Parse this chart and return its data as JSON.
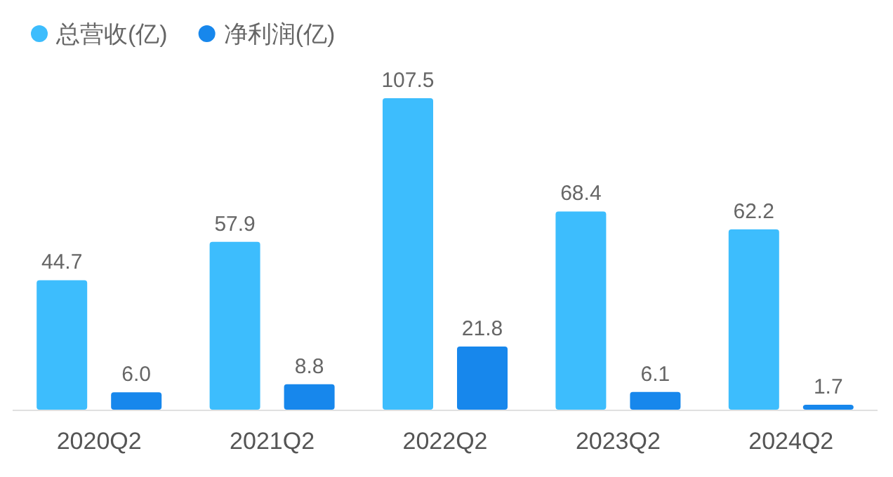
{
  "chart_data": {
    "type": "bar",
    "categories": [
      "2020Q2",
      "2021Q2",
      "2022Q2",
      "2023Q2",
      "2024Q2"
    ],
    "series": [
      {
        "name": "总营收(亿)",
        "color": "#3dbdfd",
        "values": [
          44.7,
          57.9,
          107.5,
          68.4,
          62.2
        ],
        "value_labels": [
          "44.7",
          "57.9",
          "107.5",
          "68.4",
          "62.2"
        ]
      },
      {
        "name": "净利润(亿)",
        "color": "#1787ec",
        "values": [
          6.0,
          8.8,
          21.8,
          6.1,
          1.7
        ],
        "value_labels": [
          "6.0",
          "8.8",
          "21.8",
          "6.1",
          "1.7"
        ]
      }
    ],
    "legend": "top left"
  }
}
